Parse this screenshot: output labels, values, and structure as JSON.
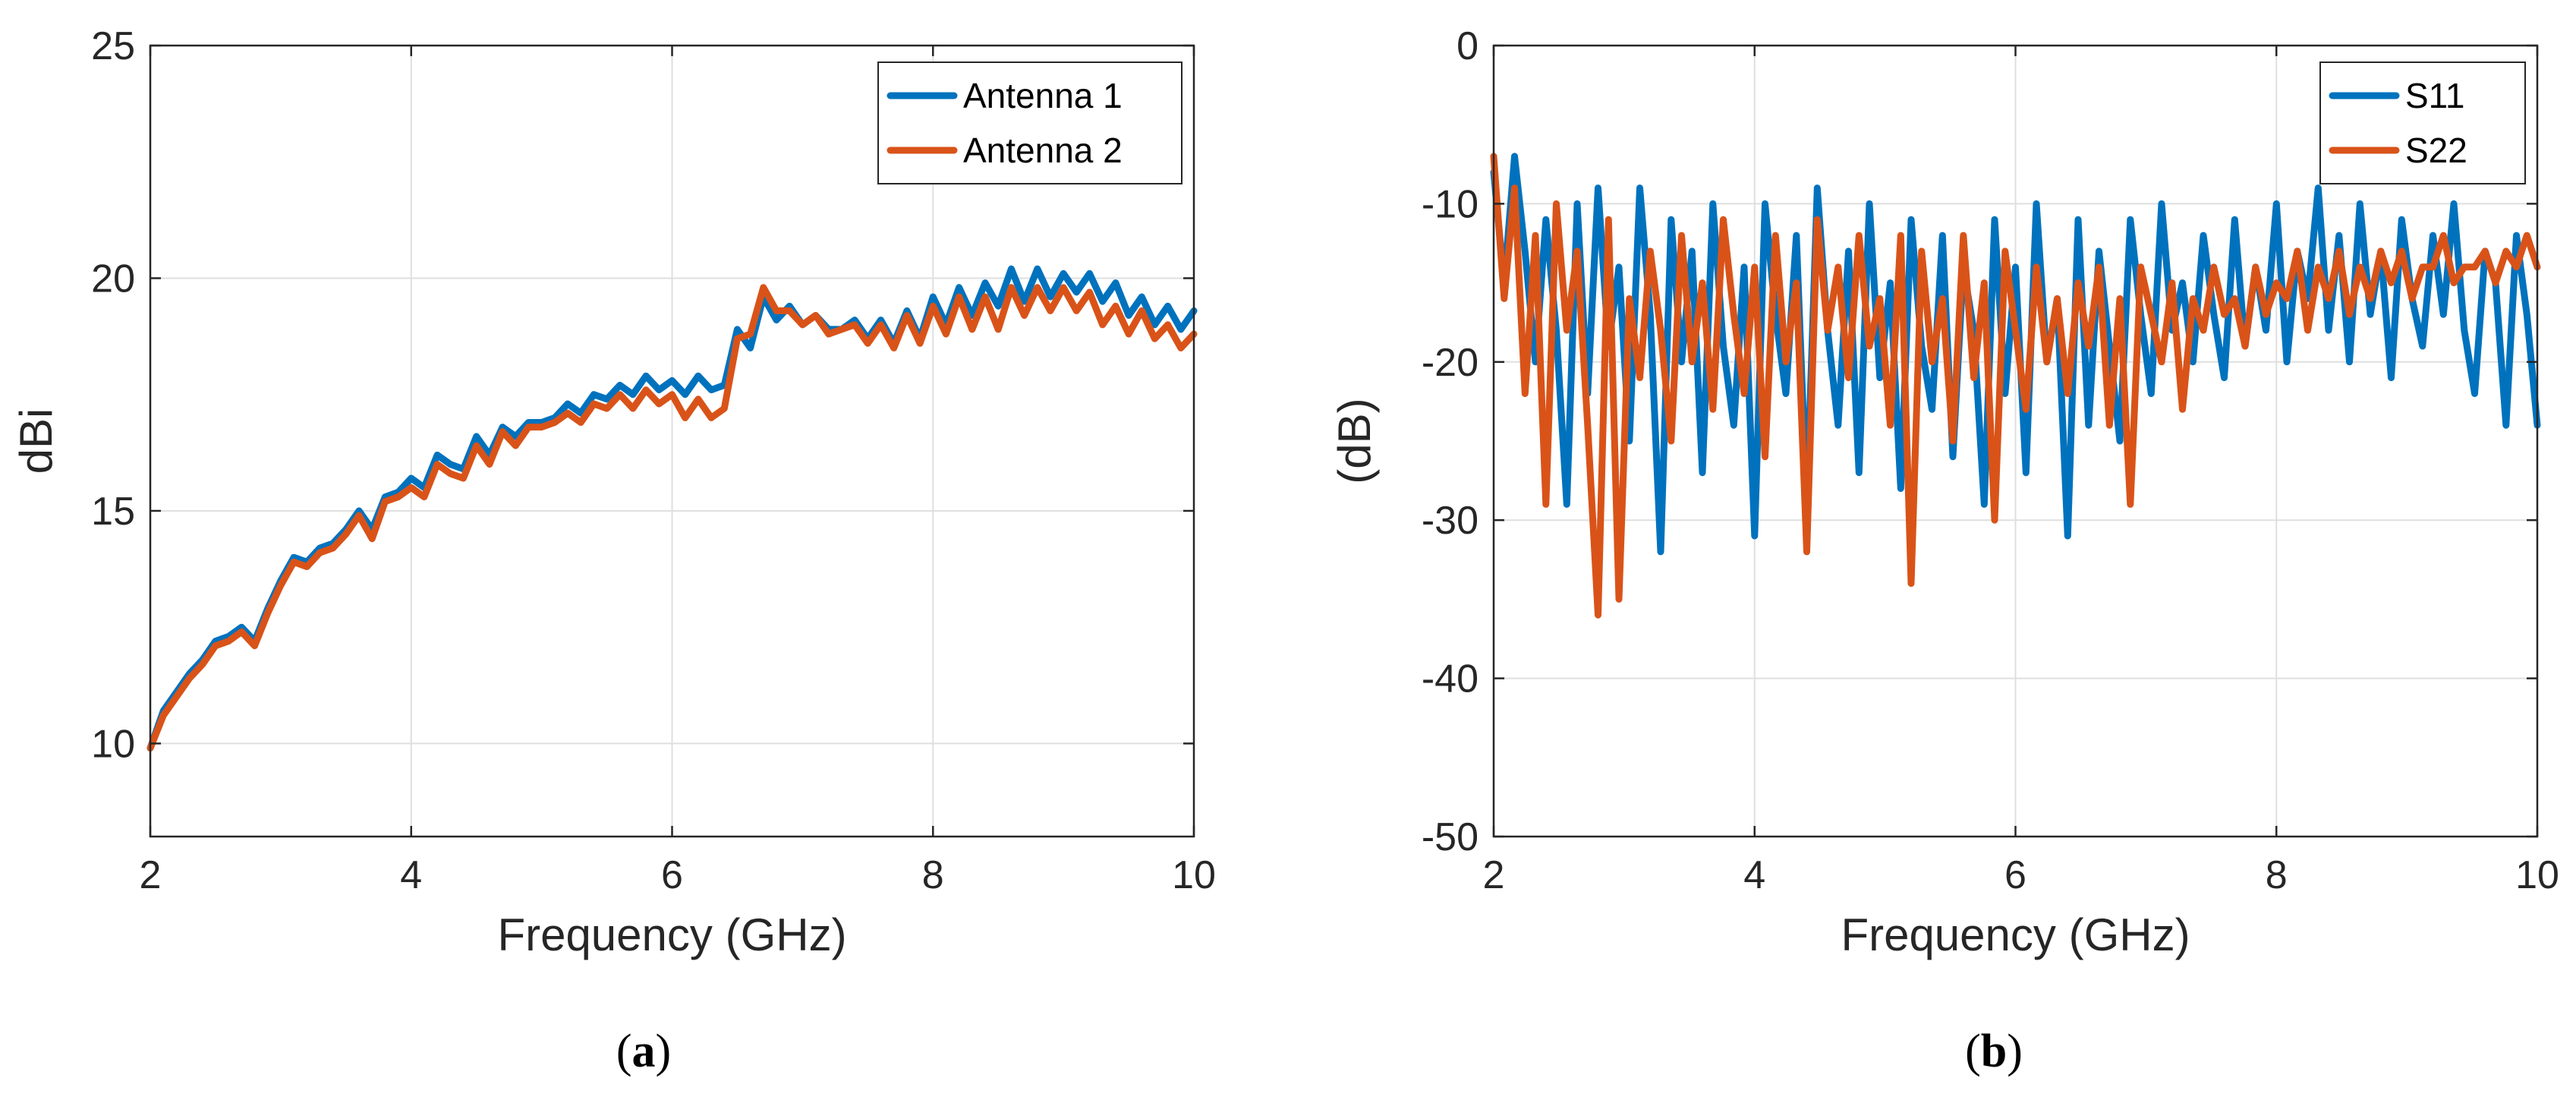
{
  "chart_data": [
    {
      "type": "line",
      "panel": "a",
      "caption": {
        "open": "(",
        "letter": "a",
        "close": ")"
      },
      "xlabel": "Frequency (GHz)",
      "ylabel": "dBi",
      "xlim": [
        2,
        10
      ],
      "ylim": [
        8,
        25
      ],
      "xticks": [
        2,
        4,
        6,
        8,
        10
      ],
      "yticks": [
        10,
        15,
        20,
        25
      ],
      "grid": true,
      "legend_position": "top-right",
      "series": [
        {
          "name": "Antenna 1",
          "color": "#0072BD",
          "x": [
            2.0,
            2.1,
            2.2,
            2.3,
            2.4,
            2.5,
            2.6,
            2.7,
            2.8,
            2.9,
            3.0,
            3.1,
            3.2,
            3.3,
            3.4,
            3.5,
            3.6,
            3.7,
            3.8,
            3.9,
            4.0,
            4.1,
            4.2,
            4.3,
            4.4,
            4.5,
            4.6,
            4.7,
            4.8,
            4.9,
            5.0,
            5.1,
            5.2,
            5.3,
            5.4,
            5.5,
            5.6,
            5.7,
            5.8,
            5.9,
            6.0,
            6.1,
            6.2,
            6.3,
            6.4,
            6.5,
            6.6,
            6.7,
            6.8,
            6.9,
            7.0,
            7.1,
            7.2,
            7.3,
            7.4,
            7.5,
            7.6,
            7.7,
            7.8,
            7.9,
            8.0,
            8.1,
            8.2,
            8.3,
            8.4,
            8.5,
            8.6,
            8.7,
            8.8,
            8.9,
            9.0,
            9.1,
            9.2,
            9.3,
            9.4,
            9.5,
            9.6,
            9.7,
            9.8,
            9.9,
            10.0
          ],
          "y": [
            9.9,
            10.7,
            11.1,
            11.5,
            11.8,
            12.2,
            12.3,
            12.5,
            12.2,
            12.9,
            13.5,
            14.0,
            13.9,
            14.2,
            14.3,
            14.6,
            15.0,
            14.6,
            15.3,
            15.4,
            15.7,
            15.5,
            16.2,
            16.0,
            15.9,
            16.6,
            16.2,
            16.8,
            16.6,
            16.9,
            16.9,
            17.0,
            17.3,
            17.1,
            17.5,
            17.4,
            17.7,
            17.5,
            17.9,
            17.6,
            17.8,
            17.5,
            17.9,
            17.6,
            17.7,
            18.9,
            18.5,
            19.6,
            19.1,
            19.4,
            19.0,
            19.2,
            18.9,
            18.9,
            19.1,
            18.7,
            19.1,
            18.6,
            19.3,
            18.7,
            19.6,
            19.0,
            19.8,
            19.2,
            19.9,
            19.4,
            20.2,
            19.5,
            20.2,
            19.6,
            20.1,
            19.7,
            20.1,
            19.5,
            19.9,
            19.2,
            19.6,
            19.0,
            19.4,
            18.9,
            19.3
          ]
        },
        {
          "name": "Antenna 2",
          "color": "#D95319",
          "x": [
            2.0,
            2.1,
            2.2,
            2.3,
            2.4,
            2.5,
            2.6,
            2.7,
            2.8,
            2.9,
            3.0,
            3.1,
            3.2,
            3.3,
            3.4,
            3.5,
            3.6,
            3.7,
            3.8,
            3.9,
            4.0,
            4.1,
            4.2,
            4.3,
            4.4,
            4.5,
            4.6,
            4.7,
            4.8,
            4.9,
            5.0,
            5.1,
            5.2,
            5.3,
            5.4,
            5.5,
            5.6,
            5.7,
            5.8,
            5.9,
            6.0,
            6.1,
            6.2,
            6.3,
            6.4,
            6.5,
            6.6,
            6.7,
            6.8,
            6.9,
            7.0,
            7.1,
            7.2,
            7.3,
            7.4,
            7.5,
            7.6,
            7.7,
            7.8,
            7.9,
            8.0,
            8.1,
            8.2,
            8.3,
            8.4,
            8.5,
            8.6,
            8.7,
            8.8,
            8.9,
            9.0,
            9.1,
            9.2,
            9.3,
            9.4,
            9.5,
            9.6,
            9.7,
            9.8,
            9.9,
            10.0
          ],
          "y": [
            9.9,
            10.6,
            11.0,
            11.4,
            11.7,
            12.1,
            12.2,
            12.4,
            12.1,
            12.8,
            13.4,
            13.9,
            13.8,
            14.1,
            14.2,
            14.5,
            14.9,
            14.4,
            15.2,
            15.3,
            15.5,
            15.3,
            16.0,
            15.8,
            15.7,
            16.4,
            16.0,
            16.7,
            16.4,
            16.8,
            16.8,
            16.9,
            17.1,
            16.9,
            17.3,
            17.2,
            17.5,
            17.2,
            17.6,
            17.3,
            17.5,
            17.0,
            17.4,
            17.0,
            17.2,
            18.7,
            18.8,
            19.8,
            19.3,
            19.3,
            19.0,
            19.2,
            18.8,
            18.9,
            19.0,
            18.6,
            19.0,
            18.5,
            19.2,
            18.6,
            19.4,
            18.8,
            19.6,
            18.9,
            19.6,
            18.9,
            19.8,
            19.2,
            19.8,
            19.3,
            19.8,
            19.3,
            19.7,
            19.0,
            19.4,
            18.8,
            19.3,
            18.7,
            19.0,
            18.5,
            18.8
          ]
        }
      ]
    },
    {
      "type": "line",
      "panel": "b",
      "caption": {
        "open": "(",
        "letter": "b",
        "close": ")"
      },
      "xlabel": "Frequency (GHz)",
      "ylabel": "(dB)",
      "xlim": [
        2,
        10
      ],
      "ylim": [
        -50,
        0
      ],
      "xticks": [
        2,
        4,
        6,
        8,
        10
      ],
      "yticks": [
        0,
        -10,
        -20,
        -30,
        -40,
        -50
      ],
      "grid": true,
      "legend_position": "top-right",
      "series": [
        {
          "name": "S11",
          "color": "#0072BD",
          "x": [
            2.0,
            2.08,
            2.16,
            2.24,
            2.32,
            2.4,
            2.48,
            2.56,
            2.64,
            2.72,
            2.8,
            2.88,
            2.96,
            3.04,
            3.12,
            3.2,
            3.28,
            3.36,
            3.44,
            3.52,
            3.6,
            3.68,
            3.76,
            3.84,
            3.92,
            4.0,
            4.08,
            4.16,
            4.24,
            4.32,
            4.4,
            4.48,
            4.56,
            4.64,
            4.72,
            4.8,
            4.88,
            4.96,
            5.04,
            5.12,
            5.2,
            5.28,
            5.36,
            5.44,
            5.52,
            5.6,
            5.68,
            5.76,
            5.84,
            5.92,
            6.0,
            6.08,
            6.16,
            6.24,
            6.32,
            6.4,
            6.48,
            6.56,
            6.64,
            6.72,
            6.8,
            6.88,
            6.96,
            7.04,
            7.12,
            7.2,
            7.28,
            7.36,
            7.44,
            7.52,
            7.6,
            7.68,
            7.76,
            7.84,
            7.92,
            8.0,
            8.08,
            8.16,
            8.24,
            8.32,
            8.4,
            8.48,
            8.56,
            8.64,
            8.72,
            8.8,
            8.88,
            8.96,
            9.04,
            9.12,
            9.2,
            9.28,
            9.36,
            9.44,
            9.52,
            9.6,
            9.68,
            9.76,
            9.84,
            9.92,
            10.0
          ],
          "y": [
            -8,
            -15,
            -7,
            -13,
            -20,
            -11,
            -18,
            -29,
            -10,
            -22,
            -9,
            -19,
            -14,
            -25,
            -9,
            -17,
            -32,
            -11,
            -20,
            -13,
            -27,
            -10,
            -19,
            -24,
            -14,
            -31,
            -10,
            -17,
            -22,
            -12,
            -29,
            -9,
            -18,
            -24,
            -13,
            -27,
            -10,
            -21,
            -15,
            -28,
            -11,
            -19,
            -23,
            -12,
            -26,
            -14,
            -18,
            -29,
            -11,
            -22,
            -14,
            -27,
            -10,
            -20,
            -16,
            -31,
            -11,
            -24,
            -13,
            -19,
            -25,
            -11,
            -17,
            -22,
            -10,
            -18,
            -15,
            -20,
            -12,
            -17,
            -21,
            -11,
            -19,
            -14,
            -18,
            -10,
            -20,
            -13,
            -16,
            -9,
            -18,
            -12,
            -20,
            -10,
            -17,
            -13,
            -21,
            -11,
            -16,
            -19,
            -12,
            -17,
            -10,
            -18,
            -22,
            -13,
            -15,
            -24,
            -12,
            -17,
            -24
          ]
        },
        {
          "name": "S22",
          "color": "#D95319",
          "x": [
            2.0,
            2.08,
            2.16,
            2.24,
            2.32,
            2.4,
            2.48,
            2.56,
            2.64,
            2.72,
            2.8,
            2.88,
            2.96,
            3.04,
            3.12,
            3.2,
            3.28,
            3.36,
            3.44,
            3.52,
            3.6,
            3.68,
            3.76,
            3.84,
            3.92,
            4.0,
            4.08,
            4.16,
            4.24,
            4.32,
            4.4,
            4.48,
            4.56,
            4.64,
            4.72,
            4.8,
            4.88,
            4.96,
            5.04,
            5.12,
            5.2,
            5.28,
            5.36,
            5.44,
            5.52,
            5.6,
            5.68,
            5.76,
            5.84,
            5.92,
            6.0,
            6.08,
            6.16,
            6.24,
            6.32,
            6.4,
            6.48,
            6.56,
            6.64,
            6.72,
            6.8,
            6.88,
            6.96,
            7.04,
            7.12,
            7.2,
            7.28,
            7.36,
            7.44,
            7.52,
            7.6,
            7.68,
            7.76,
            7.84,
            7.92,
            8.0,
            8.08,
            8.16,
            8.24,
            8.32,
            8.4,
            8.48,
            8.56,
            8.64,
            8.72,
            8.8,
            8.88,
            8.96,
            9.04,
            9.12,
            9.2,
            9.28,
            9.36,
            9.44,
            9.52,
            9.6,
            9.68,
            9.76,
            9.84,
            9.92,
            10.0
          ],
          "y": [
            -7,
            -16,
            -9,
            -22,
            -12,
            -29,
            -10,
            -18,
            -13,
            -24,
            -36,
            -11,
            -35,
            -16,
            -21,
            -13,
            -18,
            -25,
            -12,
            -20,
            -15,
            -23,
            -11,
            -17,
            -22,
            -14,
            -26,
            -12,
            -20,
            -15,
            -32,
            -11,
            -18,
            -14,
            -21,
            -12,
            -19,
            -16,
            -24,
            -12,
            -34,
            -13,
            -20,
            -16,
            -25,
            -12,
            -21,
            -15,
            -30,
            -13,
            -18,
            -23,
            -14,
            -20,
            -16,
            -22,
            -15,
            -19,
            -14,
            -24,
            -16,
            -29,
            -14,
            -17,
            -20,
            -15,
            -23,
            -16,
            -18,
            -14,
            -17,
            -16,
            -19,
            -14,
            -17,
            -15,
            -16,
            -13,
            -18,
            -14,
            -16,
            -13,
            -17,
            -14,
            -16,
            -13,
            -15,
            -13,
            -16,
            -14,
            -14,
            -12,
            -15,
            -14,
            -14,
            -13,
            -15,
            -13,
            -14,
            -12,
            -14
          ]
        }
      ]
    }
  ]
}
